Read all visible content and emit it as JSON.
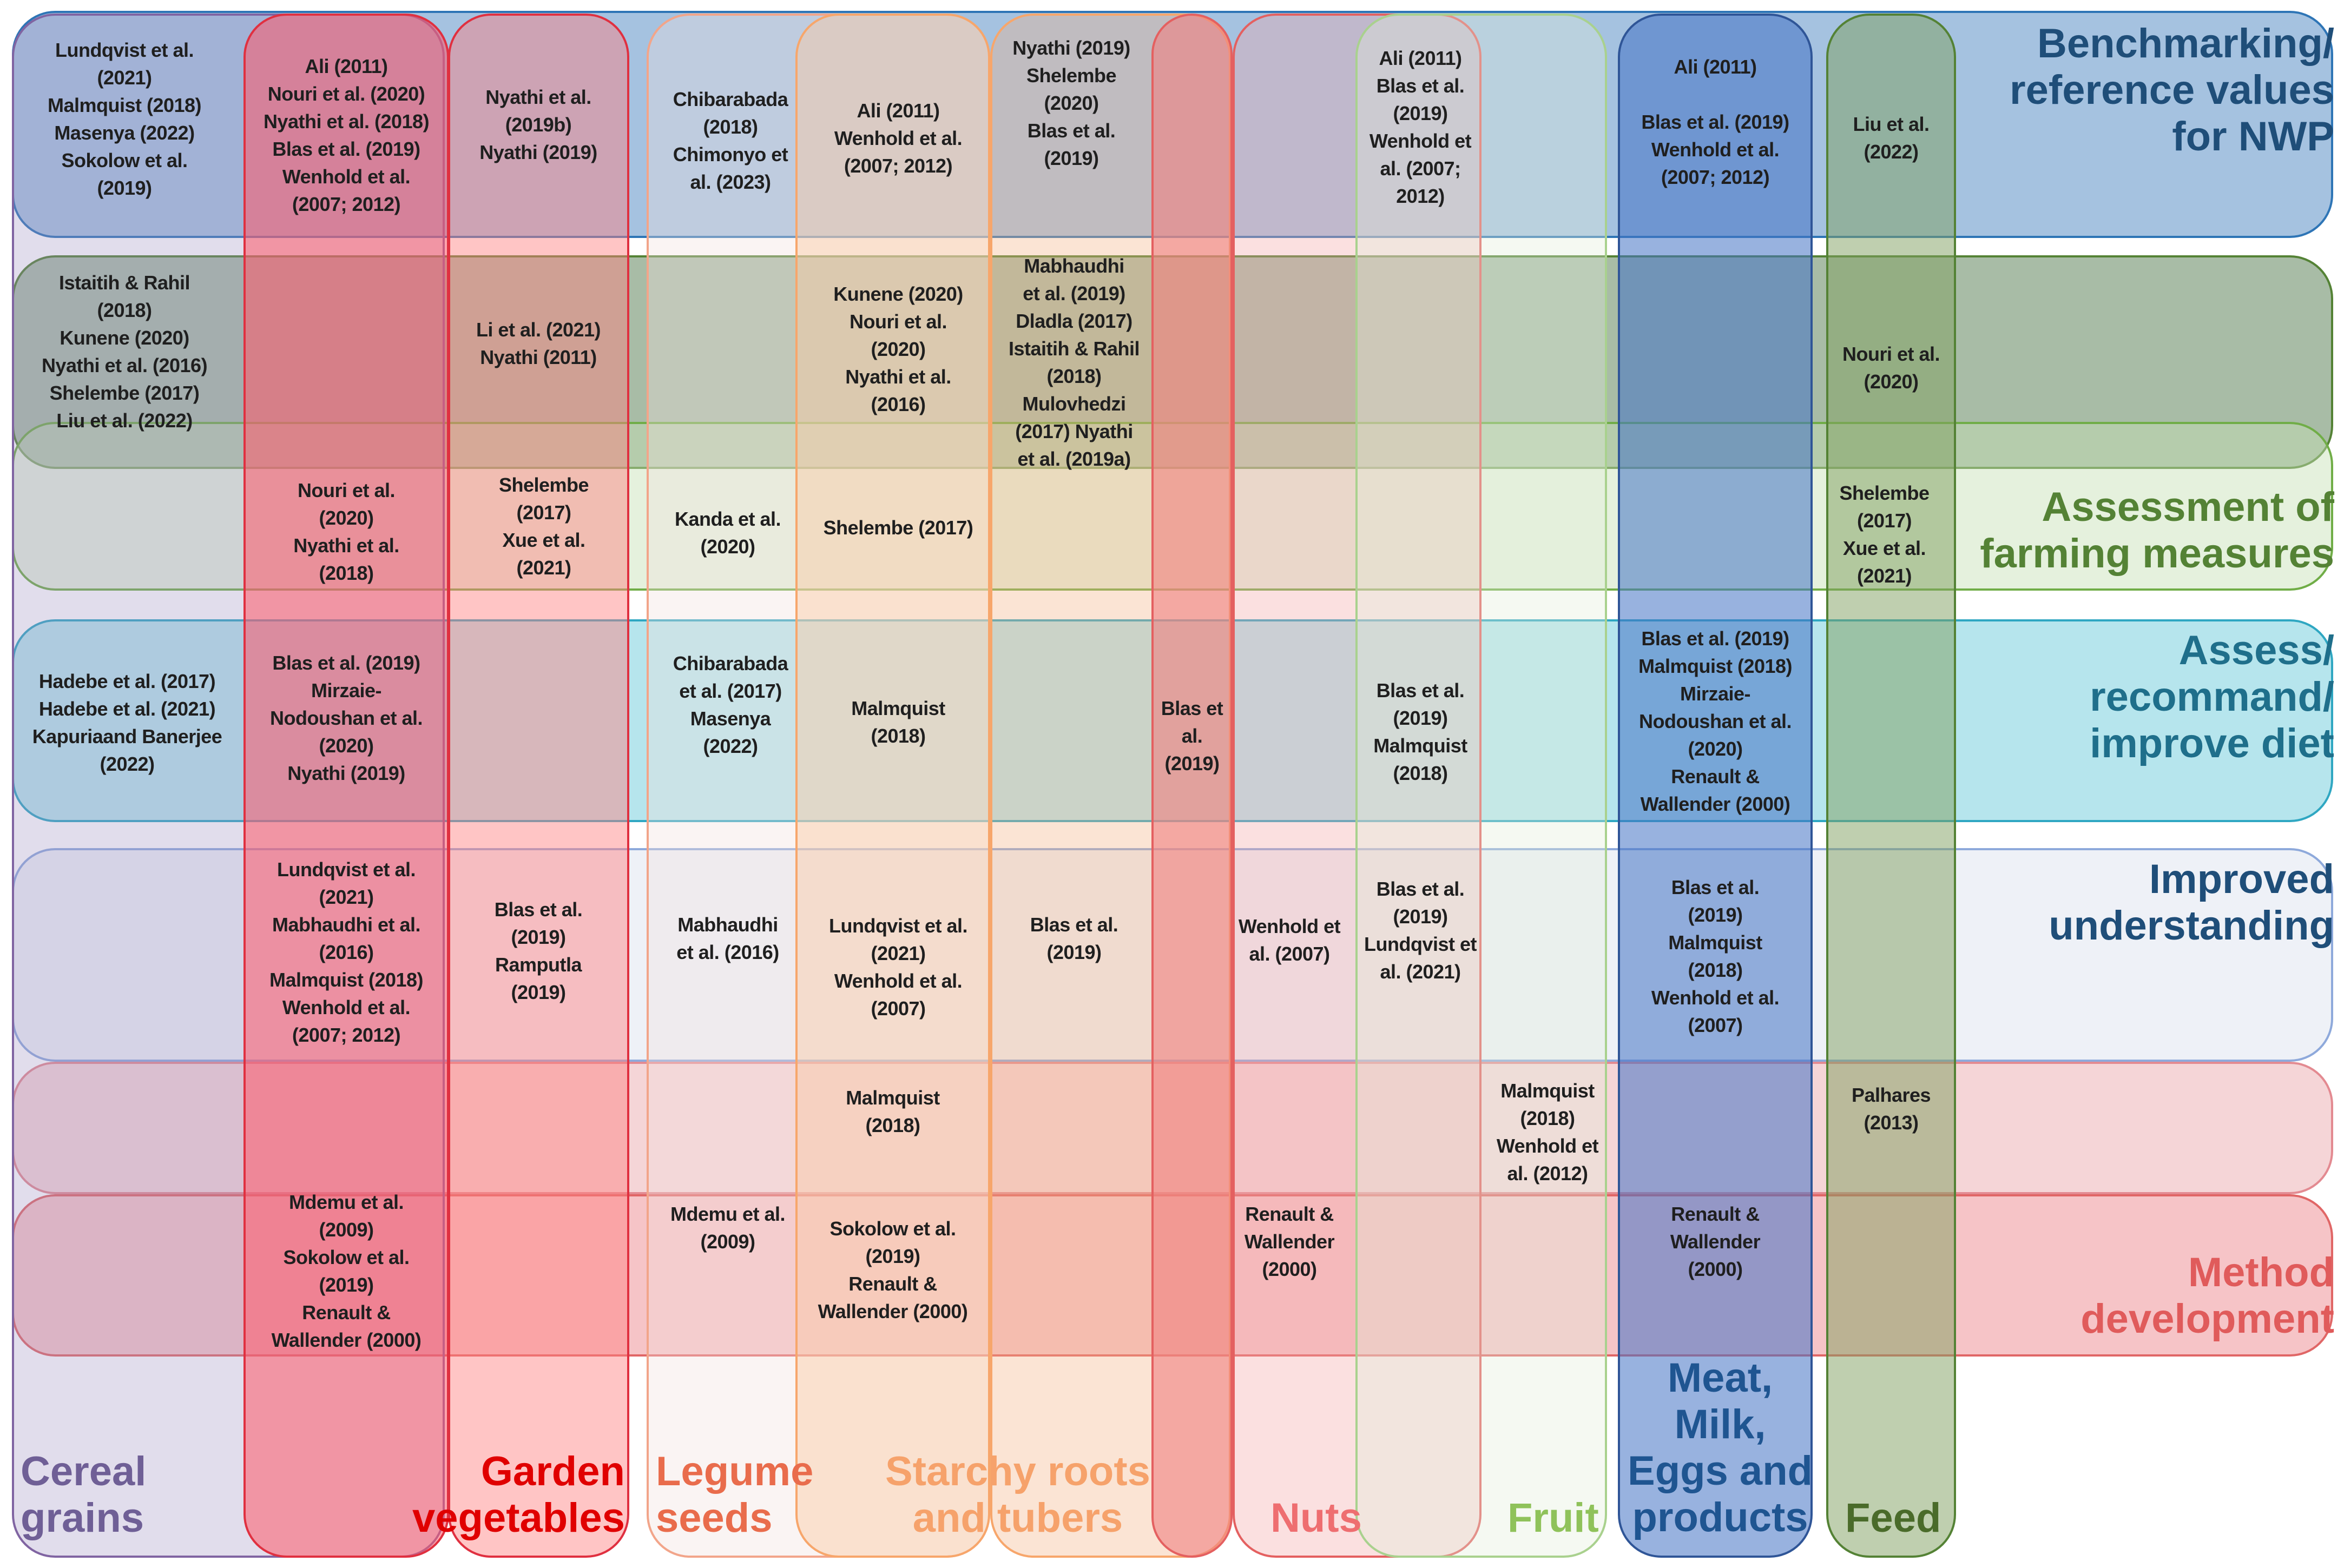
{
  "rows": [
    {
      "id": "benchmark",
      "label": "Benchmarking/\nreference values\nfor NWP",
      "color": "#1f4e79",
      "fill": "#5b8fc7",
      "border": "#2e75b6"
    },
    {
      "id": "overlap",
      "label": "",
      "color": "#385723",
      "fill": "#3f6b3a",
      "border": "#548235"
    },
    {
      "id": "assessment",
      "label": "Assessment of\nfarming measures",
      "color": "#548235",
      "fill": "#c5e0b4",
      "border": "#70ad47"
    },
    {
      "id": "diet",
      "label": "Assess/\nrecommand/\nimprove  diet",
      "color": "#1f6f8b",
      "fill": "#5ec6d8",
      "border": "#2fa7c2"
    },
    {
      "id": "understanding",
      "label": "Improved\nunderstanding",
      "color": "#1f4e79",
      "fill": "#dde3f0",
      "border": "#8ea9db"
    },
    {
      "id": "overlap2",
      "label": "",
      "color": "#c0504d",
      "fill": "#e8a1a6",
      "border": "#e38a91"
    },
    {
      "id": "method",
      "label": "Method\ndevelopment",
      "color": "#e05b5b",
      "fill": "#ee8a8f",
      "border": "#e06666"
    }
  ],
  "columns": [
    {
      "id": "cereal",
      "label": "Cereal\ngrains",
      "color": "#6f5f96",
      "fill": "#9a90c0",
      "border": "#8064a2"
    },
    {
      "id": "garden",
      "label": "Garden\nvegetables",
      "color": "#e00000",
      "fill": "#ff5a6a",
      "border": "#e03040"
    },
    {
      "id": "garden2",
      "label": "",
      "color": "#e00000",
      "fill": "#ff7f7f",
      "border": "#e03040"
    },
    {
      "id": "legume",
      "label": "Legume\nseeds",
      "color": "#e96c4c",
      "fill": "#f0e0dc",
      "border": "#f2a58a"
    },
    {
      "id": "starchy",
      "label": "Starchy roots\nand tubers",
      "color": "#f6a26b",
      "fill": "#fbc9a3",
      "border": "#f7a66b"
    },
    {
      "id": "starchy2",
      "label": "",
      "color": "#f6a26b",
      "fill": "#f4b183",
      "border": "#f7a66b"
    },
    {
      "id": "nuts",
      "label": "Nuts",
      "color": "#ee6e70",
      "fill": "#f08080",
      "border": "#e46060"
    },
    {
      "id": "nuts2",
      "label": "",
      "color": "#ee6e70",
      "fill": "#f4a6a6",
      "border": "#e46060"
    },
    {
      "id": "fruit",
      "label": "Fruit",
      "color": "#8fc25a",
      "fill": "#e2efd9",
      "border": "#a9d18e"
    },
    {
      "id": "meat",
      "label": "Meat,\nMilk,\nEggs and\nproducts",
      "color": "#1f5591",
      "fill": "#4472c4",
      "border": "#2f5597"
    },
    {
      "id": "feed",
      "label": "Feed",
      "color": "#4a6b2a",
      "fill": "#7fa060",
      "border": "#548235"
    }
  ],
  "cells": [
    {
      "text": "Lundqvist et al.\n(2021)\nMalmquist (2018)\nMasenya (2022)\nSokolow et al.\n(2019)"
    },
    {
      "text": "Ali (2011)\nNouri et al. (2020)\nNyathi et al. (2018)\nBlas et al. (2019)\nWenhold et al.\n(2007; 2012)"
    },
    {
      "text": "Nyathi et al.\n(2019b)\nNyathi (2019)"
    },
    {
      "text": "Chibarabada\n(2018)\nChimonyo et\nal. (2023)"
    },
    {
      "text": "Ali (2011)\nWenhold et al.\n(2007; 2012)"
    },
    {
      "text": "Nyathi  (2019)\nShelembe\n(2020)\nBlas et al.\n(2019)"
    },
    {
      "text": "Ali (2011)\nBlas et al.\n(2019)\nWenhold et\nal. (2007;\n2012)"
    },
    {
      "text": "Ali (2011)\n\nBlas et al. (2019)\nWenhold et al.\n(2007; 2012)"
    },
    {
      "text": "Liu et al.\n(2022)"
    },
    {
      "text": "Istaitih & Rahil\n(2018)\nKunene (2020)\nNyathi et al. (2016)\nShelembe (2017)\nLiu et al. (2022)"
    },
    {
      "text": "Li et al. (2021)\nNyathi (2011)"
    },
    {
      "text": "Kunene (2020)\nNouri et al.\n(2020)\nNyathi et al.\n(2016)"
    },
    {
      "text": "Mabhaudhi\net al. (2019)\nDladla (2017)\nIstaitih & Rahil\n(2018)\nMulovhedzi\n(2017) Nyathi\net al. (2019a)"
    },
    {
      "text": "Nouri et al.\n(2020)"
    },
    {
      "text": "Nouri et al.\n(2020)\nNyathi et al.\n(2018)"
    },
    {
      "text": "Shelembe\n(2017)\nXue et al.\n(2021)"
    },
    {
      "text": "Kanda et al.\n(2020)"
    },
    {
      "text": "Shelembe (2017)"
    },
    {
      "text": "Shelembe\n(2017)\nXue et al.\n(2021)"
    },
    {
      "text": "Hadebe et al. (2017)\nHadebe et al. (2021)\nKapuriaand Banerjee\n(2022)"
    },
    {
      "text": "Blas et al. (2019)\nMirzaie-\nNodoushan et al.\n(2020)\nNyathi (2019)"
    },
    {
      "text": "Chibarabada\net al. (2017)\nMasenya\n(2022)"
    },
    {
      "text": "Malmquist\n(2018)"
    },
    {
      "text": "Blas et\nal.\n(2019)"
    },
    {
      "text": "Blas et al.\n(2019)\nMalmquist\n(2018)"
    },
    {
      "text": "Blas et al. (2019)\nMalmquist (2018)\nMirzaie-\nNodoushan et al.\n(2020)\nRenault &\nWallender (2000)"
    },
    {
      "text": "Lundqvist et al.\n(2021)\nMabhaudhi et al.\n(2016)\nMalmquist (2018)\nWenhold et al.\n(2007; 2012)"
    },
    {
      "text": "Blas et al.\n(2019)\nRamputla\n(2019)"
    },
    {
      "text": "Mabhaudhi\net al. (2016)"
    },
    {
      "text": "Lundqvist et al.\n(2021)\nWenhold et al.\n(2007)"
    },
    {
      "text": "Blas et al.\n(2019)"
    },
    {
      "text": "Wenhold et\nal. (2007)"
    },
    {
      "text": "Blas et al.\n(2019)\nLundqvist et\nal. (2021)"
    },
    {
      "text": "Blas et al.\n(2019)\nMalmquist\n(2018)\nWenhold et al.\n(2007)"
    },
    {
      "text": "Malmquist\n(2018)"
    },
    {
      "text": "Malmquist\n(2018)\nWenhold et\nal. (2012)"
    },
    {
      "text": "Palhares\n(2013)"
    },
    {
      "text": "Mdemu et al.\n(2009)\nSokolow et al.\n(2019)\nRenault &\nWallender (2000)"
    },
    {
      "text": "Mdemu et al.\n(2009)"
    },
    {
      "text": "Sokolow et al.\n(2019)\nRenault &\nWallender (2000)"
    },
    {
      "text": "Renault &\nWallender\n(2000)"
    },
    {
      "text": "Renault &\nWallender\n(2000)"
    }
  ]
}
